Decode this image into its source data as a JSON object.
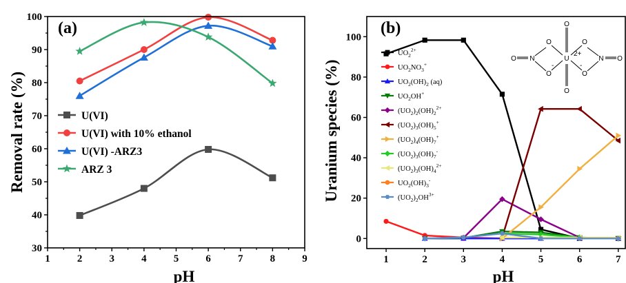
{
  "chart_data": [
    {
      "type": "line",
      "panel_label": "(a)",
      "xlabel": "pH",
      "ylabel": "Removal rate (%)",
      "xlim": [
        1,
        9
      ],
      "ylim": [
        30,
        100
      ],
      "xticks": [
        "1",
        "2",
        "3",
        "4",
        "5",
        "6",
        "7",
        "8",
        "9"
      ],
      "yticks": [
        "30",
        "40",
        "50",
        "60",
        "70",
        "80",
        "90",
        "100"
      ],
      "legend_position": "bottom-left",
      "smooth": true,
      "series": [
        {
          "name": "U(VI)",
          "color": "#4d4d4d",
          "marker": "square",
          "x": [
            2,
            4,
            6,
            8
          ],
          "y": [
            39.8,
            48,
            59.8,
            51.2
          ]
        },
        {
          "name": "U(VI) with 10% ethanol",
          "color": "#f04040",
          "marker": "circle",
          "x": [
            2,
            4,
            6,
            8
          ],
          "y": [
            80.5,
            90,
            99.8,
            92.8
          ]
        },
        {
          "name": "U(VI) -ARZ3",
          "color": "#1f6fd6",
          "marker": "triangle-up",
          "x": [
            2,
            4,
            6,
            8
          ],
          "y": [
            76,
            87.6,
            97.2,
            91
          ]
        },
        {
          "name": "ARZ 3",
          "color": "#3aa870",
          "marker": "star",
          "x": [
            2,
            4,
            6,
            8
          ],
          "y": [
            89.5,
            98.2,
            93.8,
            79.8
          ]
        }
      ]
    },
    {
      "type": "line",
      "panel_label": "(b)",
      "xlabel": "pH",
      "ylabel": "Uranium species (%)",
      "xlim": [
        0.5,
        7.2
      ],
      "ylim": [
        -5,
        110
      ],
      "xticks": [
        "1",
        "2",
        "3",
        "4",
        "5",
        "6",
        "7"
      ],
      "yticks": [
        "0",
        "20",
        "40",
        "60",
        "80",
        "100"
      ],
      "legend_position": "left",
      "series": [
        {
          "name": "UO22+",
          "color": "#000000",
          "marker": "square",
          "x": [
            1,
            2,
            3,
            4,
            5,
            6,
            7
          ],
          "y": [
            91.5,
            98.3,
            98.3,
            71.5,
            4.5,
            0,
            0
          ]
        },
        {
          "name": "UO2NO3+",
          "color": "#ff1a1a",
          "marker": "circle",
          "x": [
            1,
            2,
            3,
            4,
            5,
            6,
            7
          ],
          "y": [
            8.5,
            1.5,
            0.5,
            0,
            0,
            0,
            0
          ]
        },
        {
          "name": "UO2(OH)2 (aq)",
          "color": "#1a1aff",
          "marker": "triangle-up",
          "x": [
            2,
            3,
            4,
            5,
            6,
            7
          ],
          "y": [
            0,
            0,
            0,
            0,
            0,
            0
          ]
        },
        {
          "name": "UO2OH+",
          "color": "#0a7a0a",
          "marker": "triangle-down",
          "x": [
            2,
            3,
            4,
            5,
            6,
            7
          ],
          "y": [
            0,
            0.3,
            3.5,
            3,
            0.5,
            0
          ]
        },
        {
          "name": "(UO2)2(OH)22+",
          "color": "#8b008b",
          "marker": "diamond",
          "x": [
            3,
            4,
            5,
            6,
            7
          ],
          "y": [
            0.3,
            19.5,
            9.5,
            0.5,
            0
          ]
        },
        {
          "name": "(UO2)3(OH)5+",
          "color": "#7a0000",
          "marker": "triangle-left",
          "x": [
            4,
            5,
            6,
            7
          ],
          "y": [
            0.5,
            64.2,
            64.2,
            48.5
          ]
        },
        {
          "name": "(UO2)4(OH)7+",
          "color": "#f0b040",
          "marker": "triangle-right",
          "x": [
            4,
            5,
            6,
            7
          ],
          "y": [
            0,
            15.5,
            34.5,
            51
          ]
        },
        {
          "name": "(UO2)3(OH)7-",
          "color": "#22cc22",
          "marker": "diamond",
          "x": [
            4,
            5,
            6,
            7
          ],
          "y": [
            2.5,
            2,
            0.5,
            0
          ]
        },
        {
          "name": "(UO2)3(OH)42+",
          "color": "#e8e87a",
          "marker": "triangle-left",
          "x": [
            4,
            5,
            6,
            7
          ],
          "y": [
            0.5,
            0.5,
            0.5,
            0.5
          ]
        },
        {
          "name": "UO2(OH)3-",
          "color": "#ff8020",
          "marker": "circle",
          "x": [
            6,
            7
          ],
          "y": [
            0,
            0
          ]
        },
        {
          "name": "(UO2)2OH3+",
          "color": "#5b8cc8",
          "marker": "hexagon",
          "x": [
            2,
            3,
            4,
            5,
            6,
            7
          ],
          "y": [
            0,
            0.5,
            2.5,
            0,
            0,
            0
          ]
        }
      ],
      "legend_labels": [
        {
          "base": "UO",
          "parts": [
            [
              "sub",
              "2"
            ],
            [
              "sup",
              "2+"
            ]
          ]
        },
        {
          "base": "UO",
          "parts": [
            [
              "sub",
              "2"
            ],
            [
              "n",
              "NO"
            ],
            [
              "sub",
              "3"
            ],
            [
              "sup",
              "+"
            ]
          ]
        },
        {
          "base": "UO",
          "parts": [
            [
              "sub",
              "2"
            ],
            [
              "n",
              "(OH)"
            ],
            [
              "sub",
              "2"
            ],
            [
              "n",
              " (aq)"
            ]
          ]
        },
        {
          "base": "UO",
          "parts": [
            [
              "sub",
              "2"
            ],
            [
              "n",
              "OH"
            ],
            [
              "sup",
              "+"
            ]
          ]
        },
        {
          "base": "(UO",
          "parts": [
            [
              "sub",
              "2"
            ],
            [
              "n",
              ")"
            ],
            [
              "sub",
              "2"
            ],
            [
              "n",
              "(OH)"
            ],
            [
              "sub",
              "2"
            ],
            [
              "sup",
              "2+"
            ]
          ]
        },
        {
          "base": "(UO",
          "parts": [
            [
              "sub",
              "2"
            ],
            [
              "n",
              ")"
            ],
            [
              "sub",
              "3"
            ],
            [
              "n",
              "(OH)"
            ],
            [
              "sub",
              "5"
            ],
            [
              "sup",
              "+"
            ]
          ]
        },
        {
          "base": "(UO",
          "parts": [
            [
              "sub",
              "2"
            ],
            [
              "n",
              ")"
            ],
            [
              "sub",
              "4"
            ],
            [
              "n",
              "(OH)"
            ],
            [
              "sub",
              "7"
            ],
            [
              "sup",
              "+"
            ]
          ]
        },
        {
          "base": "(UO",
          "parts": [
            [
              "sub",
              "2"
            ],
            [
              "n",
              ")"
            ],
            [
              "sub",
              "3"
            ],
            [
              "n",
              "(OH)"
            ],
            [
              "sub",
              "7"
            ],
            [
              "sup",
              "-"
            ]
          ]
        },
        {
          "base": "(UO",
          "parts": [
            [
              "sub",
              "2"
            ],
            [
              "n",
              ")"
            ],
            [
              "sub",
              "3"
            ],
            [
              "n",
              "(OH)"
            ],
            [
              "sub",
              "4"
            ],
            [
              "sup",
              "2+"
            ]
          ]
        },
        {
          "base": "UO",
          "parts": [
            [
              "sub",
              "2"
            ],
            [
              "n",
              "(OH)"
            ],
            [
              "sub",
              "3"
            ],
            [
              "sup",
              "-"
            ]
          ]
        },
        {
          "base": "(UO",
          "parts": [
            [
              "sub",
              "2"
            ],
            [
              "n",
              ")"
            ],
            [
              "sub",
              "2"
            ],
            [
              "n",
              "OH"
            ],
            [
              "sup",
              "3+"
            ]
          ]
        }
      ],
      "inset_structure": {
        "center": "U",
        "center_charge": "2+",
        "atom_O": "O",
        "atom_N": "N",
        "minus": "-"
      }
    }
  ]
}
